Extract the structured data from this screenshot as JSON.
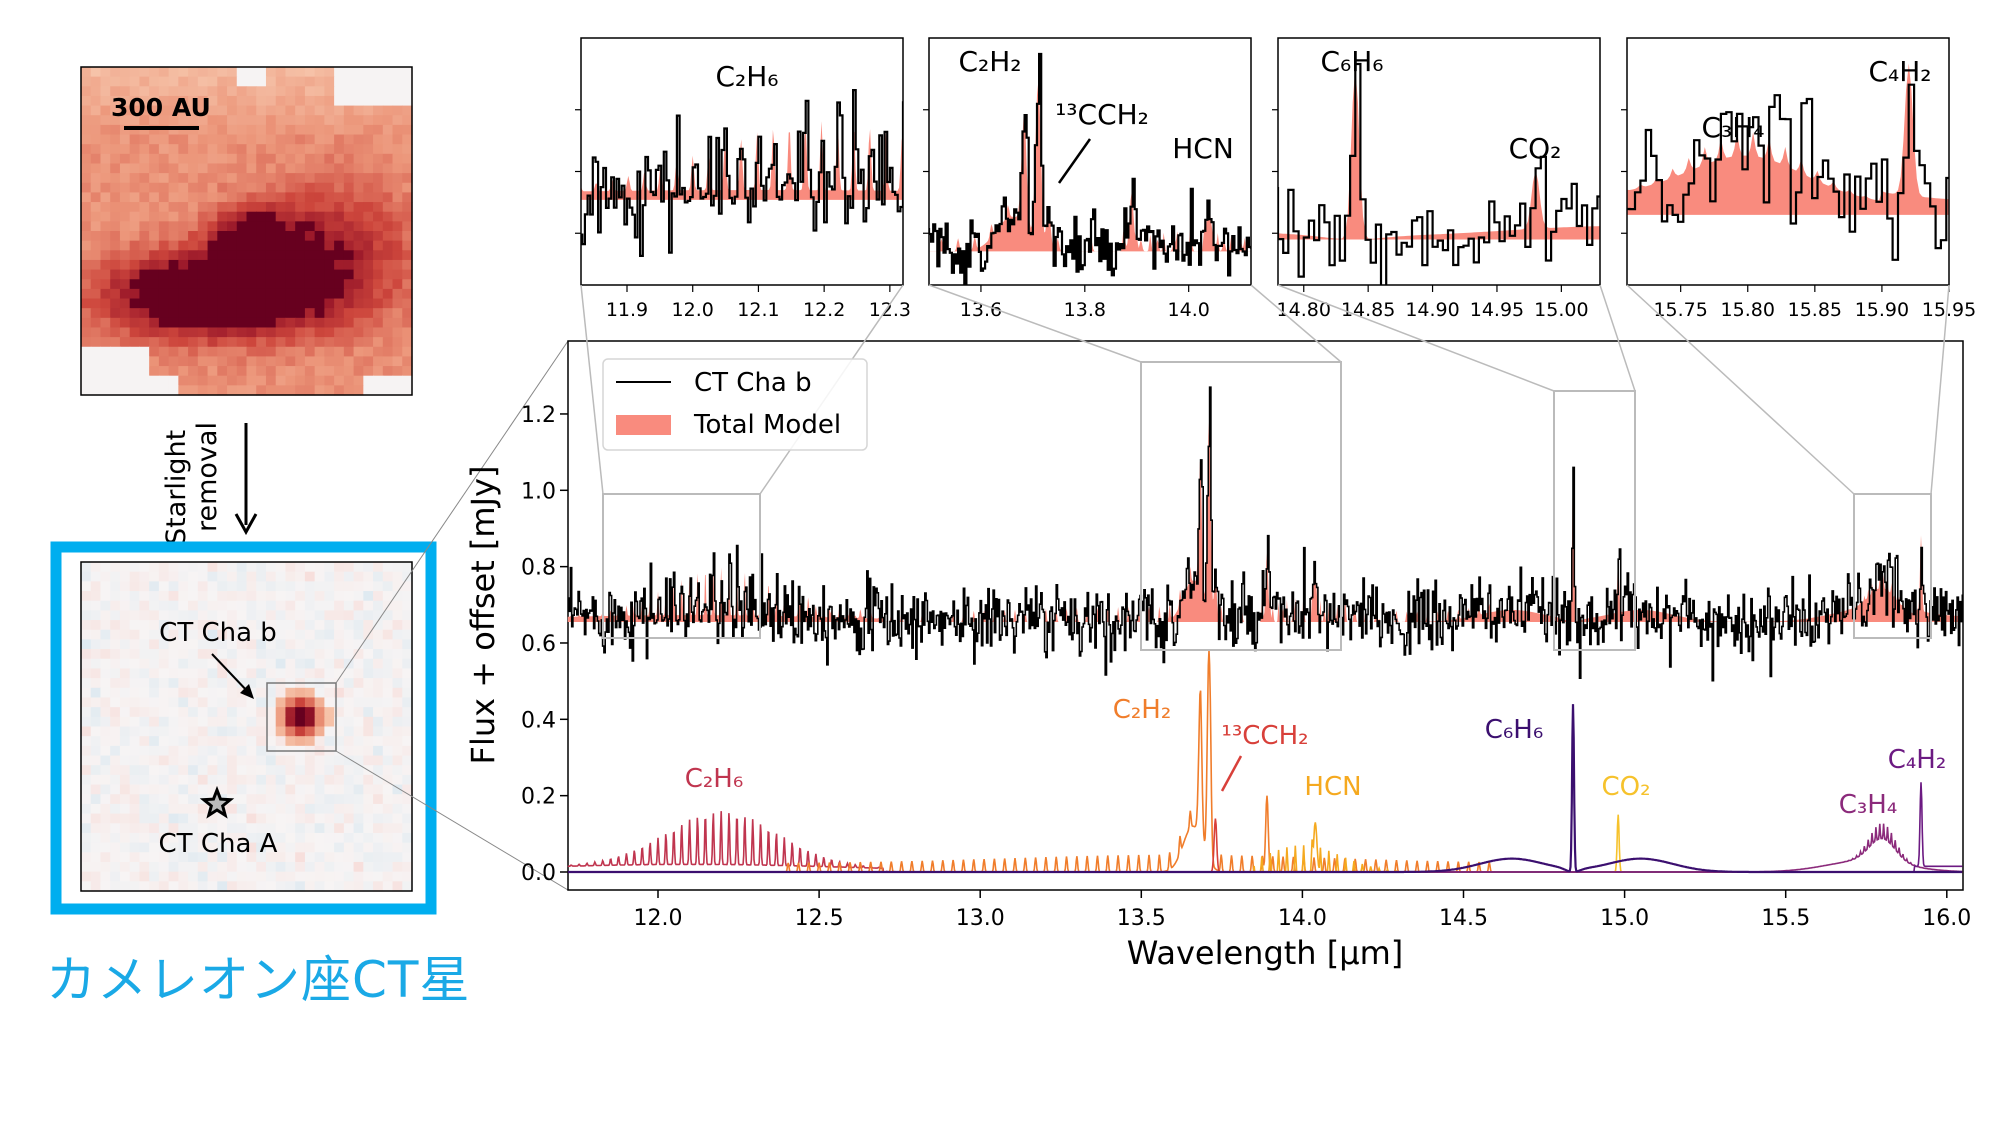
{
  "left_panel": {
    "scale_bar_label": "300 AU",
    "process_label_1": "Starlight",
    "process_label_2": "removal",
    "companion_label": "CT Cha b",
    "star_label": "CT Cha A",
    "caption": "カメレオン座CT星",
    "highlight_color": "#00aeef"
  },
  "chart_data": {
    "type": "line",
    "xlabel": "Wavelength [μm]",
    "ylabel": "Flux + offset [mJy]",
    "xlim": [
      11.72,
      16.05
    ],
    "ylim": [
      -0.047,
      1.39
    ],
    "xticks": [
      "12.0",
      "12.5",
      "13.0",
      "13.5",
      "14.0",
      "14.5",
      "15.0",
      "15.5",
      "16.0"
    ],
    "yticks": [
      "0.0",
      "0.2",
      "0.4",
      "0.6",
      "0.8",
      "1.0",
      "1.2"
    ],
    "grid": false,
    "legend": {
      "placement": "top-left",
      "entries": [
        {
          "name": "CT Cha b",
          "style": "line",
          "color": "#000000"
        },
        {
          "name": "Total Model",
          "style": "fill",
          "color": "#f98b7e"
        }
      ]
    },
    "observed_continuum_offset": 0.655,
    "observed_peaks": [
      {
        "wavelength": 13.71,
        "flux": 1.27
      },
      {
        "wavelength": 14.84,
        "flux": 1.06
      },
      {
        "wavelength": 15.92,
        "flux": 0.85
      }
    ],
    "components": [
      {
        "label": "C₂H₆",
        "color": "#c0354f",
        "range": [
          11.72,
          12.7
        ],
        "peak_wavelength": 12.2,
        "peak_flux": 0.14
      },
      {
        "label": "C₂H₂",
        "color": "#f07d2b",
        "range": [
          12.4,
          14.6
        ],
        "peak_wavelength": 13.71,
        "peak_flux": 0.55
      },
      {
        "label": "¹³CCH₂",
        "color": "#d8403a",
        "range": [
          13.7,
          13.76
        ],
        "peak_wavelength": 13.73,
        "peak_flux": 0.14
      },
      {
        "label": "HCN",
        "color": "#f5a91f",
        "range": [
          13.85,
          14.15
        ],
        "peak_wavelength": 14.04,
        "peak_flux": 0.13
      },
      {
        "label": "C₆H₆",
        "color": "#3b0f6f",
        "range": [
          14.4,
          15.3
        ],
        "peak_wavelength": 14.84,
        "peak_flux": 0.44
      },
      {
        "label": "CO₂",
        "color": "#f6c22c",
        "range": [
          14.95,
          15.01
        ],
        "peak_wavelength": 14.98,
        "peak_flux": 0.15
      },
      {
        "label": "C₃H₄",
        "color": "#8b2a7b",
        "range": [
          15.6,
          15.9
        ],
        "peak_wavelength": 15.8,
        "peak_flux": 0.1
      },
      {
        "label": "C₄H₂",
        "color": "#6c1a82",
        "range": [
          15.85,
          16.05
        ],
        "peak_wavelength": 15.92,
        "peak_flux": 0.22
      }
    ],
    "insets": [
      {
        "xlim": [
          11.83,
          12.32
        ],
        "ylim": [
          0.5,
          0.95
        ],
        "xticks": [
          "11.9",
          "12.0",
          "12.1",
          "12.2",
          "12.3"
        ],
        "labels": [
          "C₂H₆"
        ]
      },
      {
        "xlim": [
          13.5,
          14.12
        ],
        "ylim": [
          0.55,
          1.32
        ],
        "xticks": [
          "13.6",
          "13.8",
          "14.0"
        ],
        "labels": [
          "C₂H₂",
          "¹³CCH₂",
          "HCN"
        ]
      },
      {
        "xlim": [
          14.78,
          15.03
        ],
        "ylim": [
          0.55,
          1.12
        ],
        "xticks": [
          "14.80",
          "14.85",
          "14.90",
          "14.95",
          "15.00"
        ],
        "labels": [
          "C₆H₆",
          "CO₂"
        ]
      },
      {
        "xlim": [
          15.71,
          15.95
        ],
        "ylim": [
          0.55,
          0.92
        ],
        "xticks": [
          "15.75",
          "15.80",
          "15.85",
          "15.90",
          "15.95"
        ],
        "labels": [
          "C₄H₂",
          "C₃H₄"
        ]
      }
    ]
  }
}
